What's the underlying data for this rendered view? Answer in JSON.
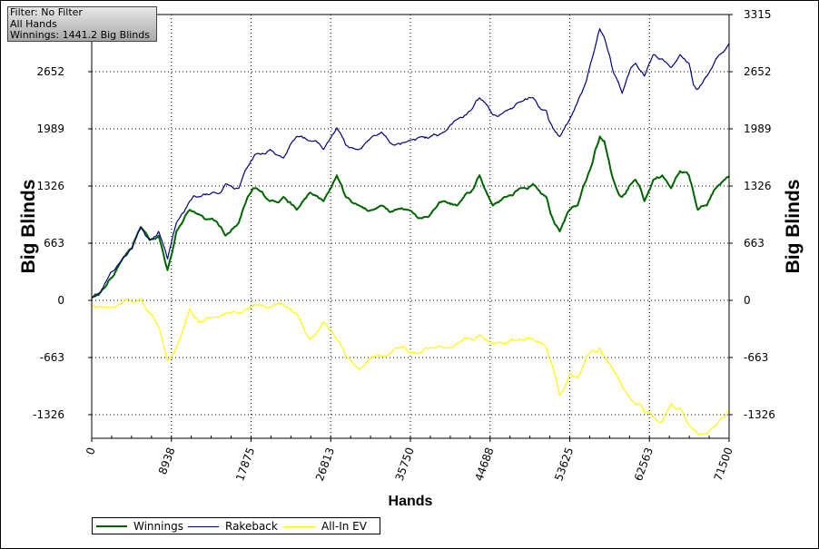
{
  "chart_data": {
    "type": "line",
    "info": {
      "filter": "Filter: No Filter",
      "hands_label": "All Hands",
      "winnings": "Winnings: 1441.2 Big Blinds"
    },
    "xlabel": "Hands",
    "ylabel": "Big Blinds",
    "ylabel_right": "Big Blinds",
    "xlim": [
      0,
      71500
    ],
    "ylim": [
      -1600,
      3315
    ],
    "x_ticks": [
      "0",
      "8938",
      "17875",
      "26813",
      "35750",
      "44688",
      "53625",
      "62563",
      "71500"
    ],
    "y_ticks": [
      "-1326",
      "-663",
      "0",
      "663",
      "1326",
      "1989",
      "2652",
      "3315"
    ],
    "y_ticks_left": [
      "-1326",
      "-663",
      "0",
      "663",
      "1326",
      "1989",
      "2652"
    ],
    "grid": true,
    "legend_position": "bottom-left",
    "x": [
      0,
      1500,
      3000,
      4500,
      5500,
      6500,
      7500,
      8500,
      9500,
      11000,
      12000,
      13500,
      15000,
      16500,
      17500,
      18500,
      20000,
      21500,
      23000,
      24500,
      26000,
      27500,
      28500,
      30000,
      31500,
      32500,
      34000,
      35500,
      37000,
      38000,
      39500,
      41000,
      42500,
      43500,
      45000,
      46500,
      48000,
      49500,
      51000,
      51500,
      52500,
      53625,
      54500,
      55500,
      56500,
      57000,
      57500,
      58500,
      59500,
      60500,
      61000,
      62000,
      63000,
      64000,
      65000,
      66000,
      67000,
      67500,
      68000,
      69000,
      70000,
      71000,
      71500
    ],
    "series": [
      {
        "name": "Winnings",
        "color": "#006400",
        "values": [
          30,
          150,
          400,
          600,
          850,
          700,
          750,
          350,
          800,
          1050,
          1000,
          950,
          750,
          900,
          1200,
          1300,
          1150,
          1200,
          1050,
          1250,
          1150,
          1450,
          1200,
          1100,
          1050,
          1100,
          1050,
          1050,
          950,
          1000,
          1150,
          1100,
          1250,
          1450,
          1100,
          1200,
          1300,
          1350,
          1200,
          1000,
          800,
          1050,
          1100,
          1400,
          1750,
          1900,
          1850,
          1400,
          1200,
          1350,
          1400,
          1150,
          1400,
          1450,
          1300,
          1500,
          1450,
          1250,
          1050,
          1100,
          1300,
          1400,
          1441
        ]
      },
      {
        "name": "Rakeback",
        "color": "#000080",
        "values": [
          30,
          200,
          420,
          600,
          850,
          700,
          800,
          480,
          900,
          1150,
          1200,
          1250,
          1350,
          1300,
          1550,
          1700,
          1750,
          1650,
          1900,
          1850,
          1750,
          2000,
          1800,
          1750,
          1900,
          1950,
          1800,
          1850,
          1900,
          1900,
          1950,
          2100,
          2200,
          2350,
          2150,
          2200,
          2300,
          2350,
          2200,
          2050,
          1900,
          2100,
          2300,
          2550,
          2950,
          3150,
          3050,
          2650,
          2400,
          2700,
          2750,
          2600,
          2850,
          2800,
          2700,
          2850,
          2750,
          2500,
          2450,
          2600,
          2800,
          2900,
          2980
        ]
      },
      {
        "name": "All-In EV",
        "color": "#ffff00",
        "values": [
          -50,
          -80,
          -50,
          -20,
          20,
          -150,
          -300,
          -700,
          -550,
          -100,
          -250,
          -200,
          -150,
          -150,
          -100,
          -50,
          -80,
          -50,
          -150,
          -450,
          -250,
          -450,
          -650,
          -800,
          -650,
          -650,
          -550,
          -600,
          -600,
          -550,
          -550,
          -500,
          -450,
          -400,
          -500,
          -500,
          -450,
          -450,
          -550,
          -700,
          -1100,
          -850,
          -900,
          -650,
          -600,
          -550,
          -650,
          -800,
          -1000,
          -1150,
          -1200,
          -1300,
          -1350,
          -1400,
          -1200,
          -1250,
          -1450,
          -1500,
          -1550,
          -1550,
          -1450,
          -1350,
          -1300
        ]
      }
    ]
  }
}
